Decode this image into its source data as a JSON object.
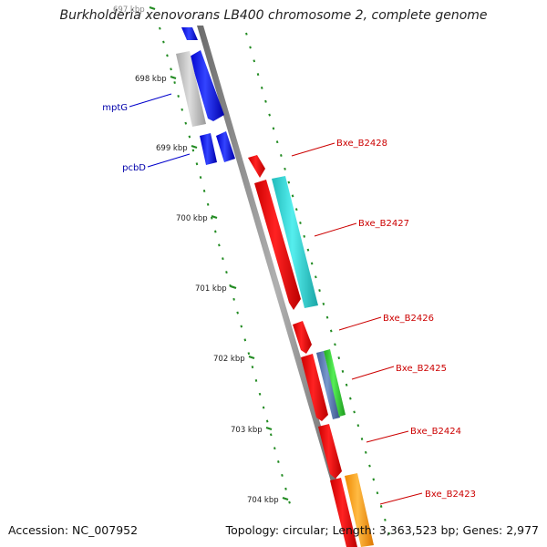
{
  "title": "Burkholderia xenovorans LB400 chromosome 2, complete genome",
  "footer": {
    "accession": "Accession: NC_007952",
    "summary": "Topology: circular; Length: 3,363,523 bp; Genes: 2,977"
  },
  "scale_labels": [
    "697 kbp",
    "698 kbp",
    "699 kbp",
    "700 kbp",
    "701 kbp",
    "702 kbp",
    "703 kbp",
    "704 kbp"
  ],
  "gene_labels_left": [
    {
      "text": "mptG",
      "color": "#0000aa"
    },
    {
      "text": "pcbD",
      "color": "#0000aa"
    }
  ],
  "gene_labels_right": [
    {
      "text": "Bxe_B2428",
      "color": "#cc0000"
    },
    {
      "text": "Bxe_B2427",
      "color": "#cc0000"
    },
    {
      "text": "Bxe_B2426",
      "color": "#cc0000"
    },
    {
      "text": "Bxe_B2425",
      "color": "#cc0000"
    },
    {
      "text": "Bxe_B2424",
      "color": "#cc0000"
    },
    {
      "text": "Bxe_B2423",
      "color": "#cc0000"
    }
  ],
  "colors": {
    "backbone": "#808080",
    "tick": "#228b22",
    "cds_forward_other": "#0000ee",
    "cds_red": "#ee0000",
    "cds_cyan": "#22cccc",
    "cds_gray": "#b8b8b8",
    "cds_green": "#33cc33",
    "cds_steel": "#5577aa",
    "cds_orange": "#ff9900"
  }
}
